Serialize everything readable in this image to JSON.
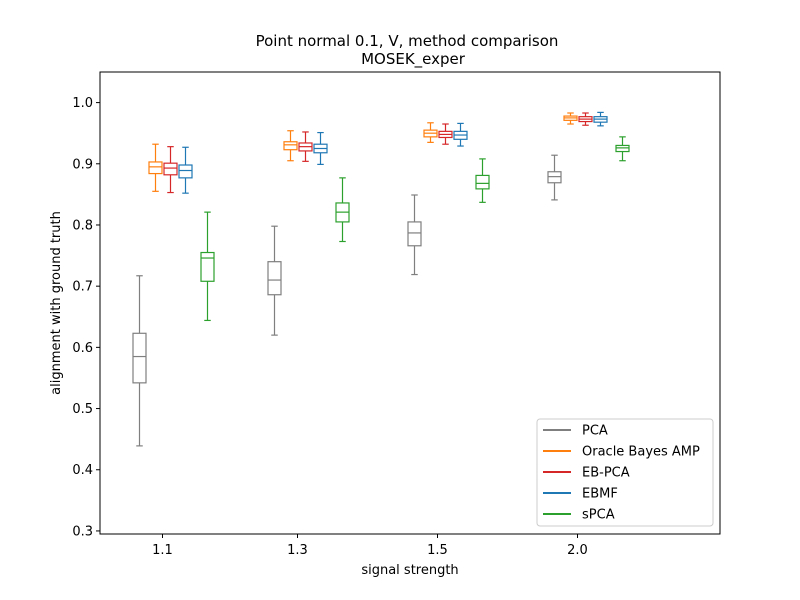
{
  "chart_data": {
    "type": "box",
    "title": "Point normal 0.1, V, method comparison",
    "subtitle": "MOSEK_exper",
    "xlabel": "signal strength",
    "ylabel": "alignment with ground truth",
    "categories": [
      "1.1",
      "1.3",
      "1.5",
      "2.0"
    ],
    "ylim": [
      0.295,
      1.05
    ],
    "yticks": [
      "0.3",
      "0.4",
      "0.5",
      "0.6",
      "0.7",
      "0.8",
      "0.9",
      "1.0"
    ],
    "legend_position": "lower-right",
    "grid": false,
    "series": [
      {
        "name": "PCA",
        "color": "#7f7f7f",
        "boxes": [
          {
            "whislo": 0.439,
            "q1": 0.542,
            "med": 0.585,
            "q3": 0.623,
            "whishi": 0.717
          },
          {
            "whislo": 0.62,
            "q1": 0.686,
            "med": 0.71,
            "q3": 0.74,
            "whishi": 0.798
          },
          {
            "whislo": 0.719,
            "q1": 0.766,
            "med": 0.787,
            "q3": 0.805,
            "whishi": 0.849
          },
          {
            "whislo": 0.841,
            "q1": 0.869,
            "med": 0.879,
            "q3": 0.887,
            "whishi": 0.914
          }
        ]
      },
      {
        "name": "Oracle Bayes AMP",
        "color": "#ff7f0e",
        "boxes": [
          {
            "whislo": 0.855,
            "q1": 0.884,
            "med": 0.895,
            "q3": 0.903,
            "whishi": 0.932
          },
          {
            "whislo": 0.905,
            "q1": 0.923,
            "med": 0.931,
            "q3": 0.936,
            "whishi": 0.954
          },
          {
            "whislo": 0.935,
            "q1": 0.944,
            "med": 0.95,
            "q3": 0.955,
            "whishi": 0.967
          },
          {
            "whislo": 0.965,
            "q1": 0.971,
            "med": 0.975,
            "q3": 0.978,
            "whishi": 0.983
          }
        ]
      },
      {
        "name": "EB-PCA",
        "color": "#d62728",
        "boxes": [
          {
            "whislo": 0.853,
            "q1": 0.882,
            "med": 0.893,
            "q3": 0.901,
            "whishi": 0.928
          },
          {
            "whislo": 0.904,
            "q1": 0.921,
            "med": 0.928,
            "q3": 0.934,
            "whishi": 0.952
          },
          {
            "whislo": 0.932,
            "q1": 0.943,
            "med": 0.948,
            "q3": 0.953,
            "whishi": 0.965
          },
          {
            "whislo": 0.963,
            "q1": 0.969,
            "med": 0.973,
            "q3": 0.977,
            "whishi": 0.983
          }
        ]
      },
      {
        "name": "EBMF",
        "color": "#1f77b4",
        "boxes": [
          {
            "whislo": 0.852,
            "q1": 0.877,
            "med": 0.889,
            "q3": 0.898,
            "whishi": 0.927
          },
          {
            "whislo": 0.899,
            "q1": 0.918,
            "med": 0.925,
            "q3": 0.932,
            "whishi": 0.951
          },
          {
            "whislo": 0.929,
            "q1": 0.94,
            "med": 0.947,
            "q3": 0.953,
            "whishi": 0.966
          },
          {
            "whislo": 0.962,
            "q1": 0.968,
            "med": 0.973,
            "q3": 0.977,
            "whishi": 0.984
          }
        ]
      },
      {
        "name": "sPCA",
        "color": "#2ca02c",
        "boxes": [
          {
            "whislo": 0.644,
            "q1": 0.708,
            "med": 0.746,
            "q3": 0.755,
            "whishi": 0.821
          },
          {
            "whislo": 0.773,
            "q1": 0.805,
            "med": 0.821,
            "q3": 0.836,
            "whishi": 0.877
          },
          {
            "whislo": 0.837,
            "q1": 0.859,
            "med": 0.868,
            "q3": 0.881,
            "whishi": 0.908
          },
          {
            "whislo": 0.905,
            "q1": 0.92,
            "med": 0.926,
            "q3": 0.93,
            "whishi": 0.944
          }
        ]
      }
    ]
  }
}
